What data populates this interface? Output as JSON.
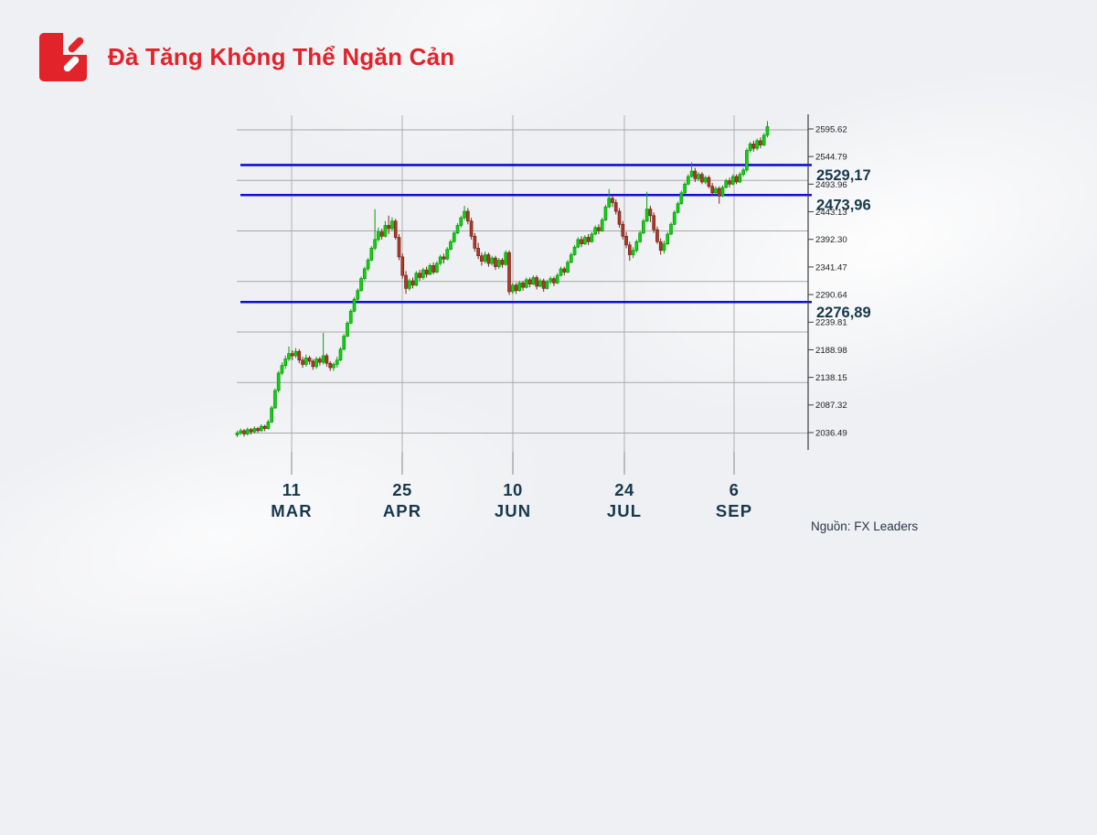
{
  "header": {
    "title": "Đà Tăng Không Thể Ngăn Cản"
  },
  "source": {
    "label": "Nguồn: FX Leaders"
  },
  "colors": {
    "accent_red": "#e2232a",
    "label_navy": "#17384d",
    "level_blue": "#0d0ddd",
    "candle_up_fill": "#10d010",
    "candle_up_stroke": "#0b9c0b",
    "candle_down_fill": "#a93a2c",
    "candle_down_stroke": "#7c241a",
    "grid_gray": "#b5b5b5",
    "hgrid_gray": "#a8a8a8",
    "axis_gray": "#3e3e3e",
    "tick_text": "#1d1d1d",
    "background": "#eff0f3"
  },
  "chart_data": {
    "type": "candlestick",
    "title": "Đà Tăng Không Thể Ngăn Cản",
    "xlabel": "",
    "ylabel": "",
    "grid": true,
    "legend": false,
    "y_axis": {
      "side": "right",
      "top_tick_value": 2595.62,
      "bottom_tick_value": 2036.49,
      "tick_step": 50.83,
      "ticks": [
        "2595.62",
        "2544.79",
        "2493.96",
        "2443.13",
        "2392.30",
        "2341.47",
        "2290.64",
        "2239.81",
        "2188.98",
        "2138.15",
        "2087.32",
        "2036.49"
      ]
    },
    "x_axis": {
      "ticks": [
        {
          "day": "11",
          "month": "MAR"
        },
        {
          "day": "25",
          "month": "APR"
        },
        {
          "day": "10",
          "month": "JUN"
        },
        {
          "day": "24",
          "month": "JUL"
        },
        {
          "day": "6",
          "month": "SEP"
        }
      ]
    },
    "levels": [
      {
        "price": 2529.17,
        "label": "2529,17"
      },
      {
        "price": 2473.96,
        "label": "2473,96"
      },
      {
        "price": 2276.89,
        "label": "2276,89"
      }
    ],
    "candles_format": [
      "open",
      "high",
      "low",
      "close"
    ],
    "candles": [
      [
        2032,
        2040,
        2028,
        2036
      ],
      [
        2036,
        2044,
        2032,
        2040
      ],
      [
        2040,
        2043,
        2029,
        2034
      ],
      [
        2034,
        2046,
        2031,
        2042
      ],
      [
        2042,
        2045,
        2033,
        2038
      ],
      [
        2038,
        2048,
        2035,
        2044
      ],
      [
        2044,
        2047,
        2036,
        2040
      ],
      [
        2040,
        2052,
        2038,
        2048
      ],
      [
        2048,
        2051,
        2039,
        2044
      ],
      [
        2044,
        2060,
        2042,
        2056
      ],
      [
        2056,
        2086,
        2054,
        2082
      ],
      [
        2082,
        2118,
        2080,
        2114
      ],
      [
        2114,
        2150,
        2110,
        2146
      ],
      [
        2146,
        2166,
        2142,
        2160
      ],
      [
        2160,
        2178,
        2154,
        2172
      ],
      [
        2172,
        2195,
        2168,
        2182
      ],
      [
        2182,
        2188,
        2170,
        2178
      ],
      [
        2178,
        2192,
        2174,
        2186
      ],
      [
        2186,
        2190,
        2164,
        2170
      ],
      [
        2170,
        2176,
        2156,
        2162
      ],
      [
        2162,
        2180,
        2158,
        2174
      ],
      [
        2174,
        2178,
        2162,
        2168
      ],
      [
        2168,
        2172,
        2152,
        2158
      ],
      [
        2158,
        2176,
        2154,
        2172
      ],
      [
        2172,
        2176,
        2160,
        2166
      ],
      [
        2166,
        2220,
        2162,
        2178
      ],
      [
        2178,
        2182,
        2158,
        2164
      ],
      [
        2164,
        2168,
        2150,
        2156
      ],
      [
        2156,
        2166,
        2150,
        2162
      ],
      [
        2162,
        2176,
        2156,
        2170
      ],
      [
        2170,
        2194,
        2168,
        2190
      ],
      [
        2190,
        2218,
        2188,
        2214
      ],
      [
        2214,
        2242,
        2212,
        2238
      ],
      [
        2238,
        2264,
        2236,
        2260
      ],
      [
        2260,
        2286,
        2258,
        2282
      ],
      [
        2282,
        2302,
        2278,
        2298
      ],
      [
        2298,
        2324,
        2296,
        2320
      ],
      [
        2320,
        2342,
        2316,
        2338
      ],
      [
        2338,
        2358,
        2334,
        2354
      ],
      [
        2354,
        2380,
        2352,
        2376
      ],
      [
        2376,
        2448,
        2372,
        2392
      ],
      [
        2392,
        2414,
        2388,
        2406
      ],
      [
        2406,
        2412,
        2392,
        2398
      ],
      [
        2398,
        2426,
        2396,
        2418
      ],
      [
        2418,
        2436,
        2402,
        2412
      ],
      [
        2412,
        2433,
        2408,
        2426
      ],
      [
        2426,
        2430,
        2392,
        2396
      ],
      [
        2396,
        2402,
        2354,
        2360
      ],
      [
        2360,
        2366,
        2320,
        2326
      ],
      [
        2326,
        2334,
        2292,
        2302
      ],
      [
        2302,
        2320,
        2298,
        2316
      ],
      [
        2316,
        2322,
        2302,
        2308
      ],
      [
        2308,
        2334,
        2306,
        2330
      ],
      [
        2330,
        2336,
        2316,
        2322
      ],
      [
        2322,
        2340,
        2318,
        2336
      ],
      [
        2336,
        2342,
        2322,
        2328
      ],
      [
        2328,
        2348,
        2326,
        2344
      ],
      [
        2344,
        2350,
        2328,
        2332
      ],
      [
        2332,
        2352,
        2330,
        2348
      ],
      [
        2348,
        2364,
        2344,
        2360
      ],
      [
        2360,
        2366,
        2348,
        2356
      ],
      [
        2356,
        2378,
        2354,
        2374
      ],
      [
        2374,
        2392,
        2372,
        2388
      ],
      [
        2388,
        2408,
        2386,
        2404
      ],
      [
        2404,
        2422,
        2402,
        2418
      ],
      [
        2418,
        2436,
        2414,
        2432
      ],
      [
        2432,
        2454,
        2428,
        2444
      ],
      [
        2444,
        2450,
        2420,
        2426
      ],
      [
        2426,
        2432,
        2392,
        2398
      ],
      [
        2398,
        2404,
        2370,
        2376
      ],
      [
        2376,
        2386,
        2356,
        2362
      ],
      [
        2362,
        2368,
        2344,
        2352
      ],
      [
        2352,
        2370,
        2348,
        2364
      ],
      [
        2364,
        2368,
        2342,
        2348
      ],
      [
        2348,
        2362,
        2344,
        2358
      ],
      [
        2358,
        2362,
        2336,
        2342
      ],
      [
        2342,
        2358,
        2338,
        2354
      ],
      [
        2354,
        2358,
        2340,
        2346
      ],
      [
        2346,
        2372,
        2344,
        2368
      ],
      [
        2368,
        2372,
        2290,
        2296
      ],
      [
        2296,
        2312,
        2292,
        2308
      ],
      [
        2308,
        2312,
        2292,
        2298
      ],
      [
        2298,
        2316,
        2296,
        2312
      ],
      [
        2312,
        2316,
        2298,
        2304
      ],
      [
        2304,
        2322,
        2302,
        2318
      ],
      [
        2318,
        2322,
        2304,
        2310
      ],
      [
        2310,
        2326,
        2308,
        2322
      ],
      [
        2322,
        2326,
        2300,
        2306
      ],
      [
        2306,
        2320,
        2304,
        2316
      ],
      [
        2316,
        2320,
        2296,
        2302
      ],
      [
        2302,
        2318,
        2300,
        2314
      ],
      [
        2314,
        2324,
        2310,
        2320
      ],
      [
        2320,
        2324,
        2306,
        2312
      ],
      [
        2312,
        2330,
        2310,
        2326
      ],
      [
        2326,
        2342,
        2324,
        2338
      ],
      [
        2338,
        2342,
        2326,
        2332
      ],
      [
        2332,
        2354,
        2330,
        2350
      ],
      [
        2350,
        2368,
        2348,
        2364
      ],
      [
        2364,
        2382,
        2362,
        2378
      ],
      [
        2378,
        2396,
        2376,
        2392
      ],
      [
        2392,
        2398,
        2378,
        2384
      ],
      [
        2384,
        2400,
        2382,
        2396
      ],
      [
        2396,
        2402,
        2382,
        2388
      ],
      [
        2388,
        2406,
        2386,
        2402
      ],
      [
        2402,
        2418,
        2400,
        2414
      ],
      [
        2414,
        2420,
        2402,
        2408
      ],
      [
        2408,
        2432,
        2406,
        2428
      ],
      [
        2428,
        2456,
        2426,
        2452
      ],
      [
        2452,
        2485,
        2450,
        2468
      ],
      [
        2468,
        2474,
        2452,
        2460
      ],
      [
        2460,
        2466,
        2438,
        2444
      ],
      [
        2444,
        2450,
        2414,
        2420
      ],
      [
        2420,
        2426,
        2392,
        2398
      ],
      [
        2398,
        2406,
        2376,
        2382
      ],
      [
        2382,
        2388,
        2353,
        2364
      ],
      [
        2364,
        2378,
        2358,
        2372
      ],
      [
        2372,
        2392,
        2368,
        2388
      ],
      [
        2388,
        2408,
        2386,
        2404
      ],
      [
        2404,
        2430,
        2402,
        2426
      ],
      [
        2426,
        2480,
        2424,
        2448
      ],
      [
        2448,
        2454,
        2424,
        2436
      ],
      [
        2436,
        2442,
        2404,
        2410
      ],
      [
        2410,
        2416,
        2384,
        2388
      ],
      [
        2388,
        2394,
        2364,
        2372
      ],
      [
        2372,
        2390,
        2366,
        2384
      ],
      [
        2384,
        2406,
        2382,
        2402
      ],
      [
        2402,
        2424,
        2400,
        2420
      ],
      [
        2420,
        2446,
        2418,
        2442
      ],
      [
        2442,
        2462,
        2440,
        2458
      ],
      [
        2458,
        2482,
        2456,
        2478
      ],
      [
        2478,
        2498,
        2476,
        2494
      ],
      [
        2494,
        2512,
        2492,
        2508
      ],
      [
        2508,
        2534,
        2506,
        2518
      ],
      [
        2518,
        2524,
        2498,
        2504
      ],
      [
        2504,
        2516,
        2500,
        2512
      ],
      [
        2512,
        2516,
        2494,
        2498
      ],
      [
        2498,
        2510,
        2494,
        2506
      ],
      [
        2506,
        2510,
        2486,
        2490
      ],
      [
        2490,
        2496,
        2472,
        2478
      ],
      [
        2478,
        2490,
        2474,
        2486
      ],
      [
        2486,
        2490,
        2458,
        2472
      ],
      [
        2472,
        2492,
        2470,
        2488
      ],
      [
        2488,
        2504,
        2486,
        2500
      ],
      [
        2500,
        2506,
        2488,
        2494
      ],
      [
        2494,
        2512,
        2492,
        2508
      ],
      [
        2508,
        2512,
        2494,
        2498
      ],
      [
        2498,
        2516,
        2496,
        2512
      ],
      [
        2512,
        2524,
        2508,
        2520
      ],
      [
        2520,
        2560,
        2516,
        2556
      ],
      [
        2556,
        2572,
        2552,
        2568
      ],
      [
        2568,
        2574,
        2554,
        2560
      ],
      [
        2560,
        2578,
        2556,
        2574
      ],
      [
        2574,
        2580,
        2560,
        2566
      ],
      [
        2566,
        2588,
        2564,
        2584
      ],
      [
        2584,
        2610,
        2580,
        2600
      ]
    ]
  }
}
